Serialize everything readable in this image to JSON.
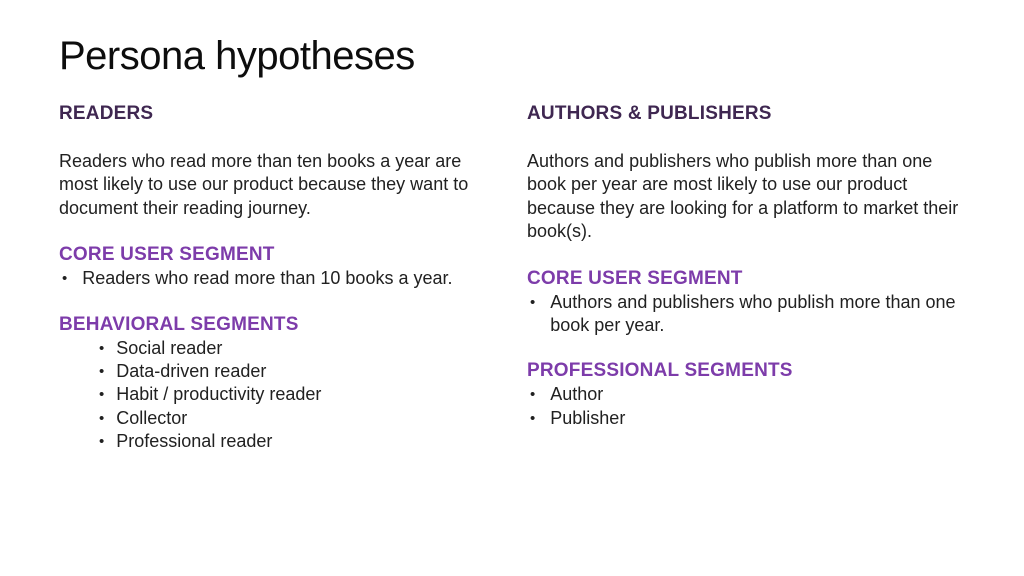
{
  "slide": {
    "title": "Persona hypotheses",
    "bullet_glyph": "•",
    "colors": {
      "persona_heading": "#3f2751",
      "segment_heading": "#7d3caa",
      "body_text": "#212121",
      "background": "#ffffff"
    },
    "columns": [
      {
        "heading": "READERS",
        "description": "Readers who read more than ten books a year are most likely to use our product because they want to document their reading journey.",
        "sections": [
          {
            "heading": "CORE USER SEGMENT",
            "items": [
              "Readers who read more than 10 books a year."
            ]
          },
          {
            "heading": "BEHAVIORAL SEGMENTS",
            "items": [
              "Social reader",
              "Data-driven reader",
              "Habit / productivity reader",
              "Collector",
              "Professional reader"
            ]
          }
        ]
      },
      {
        "heading": "AUTHORS & PUBLISHERS",
        "description": "Authors and publishers who publish more than one book per year are most likely to use our product because they are looking for a platform to market their book(s).",
        "sections": [
          {
            "heading": "CORE USER SEGMENT",
            "items": [
              "Authors and publishers who publish more than one book per year."
            ]
          },
          {
            "heading": "PROFESSIONAL SEGMENTS",
            "items": [
              "Author",
              "Publisher"
            ]
          }
        ]
      }
    ]
  }
}
